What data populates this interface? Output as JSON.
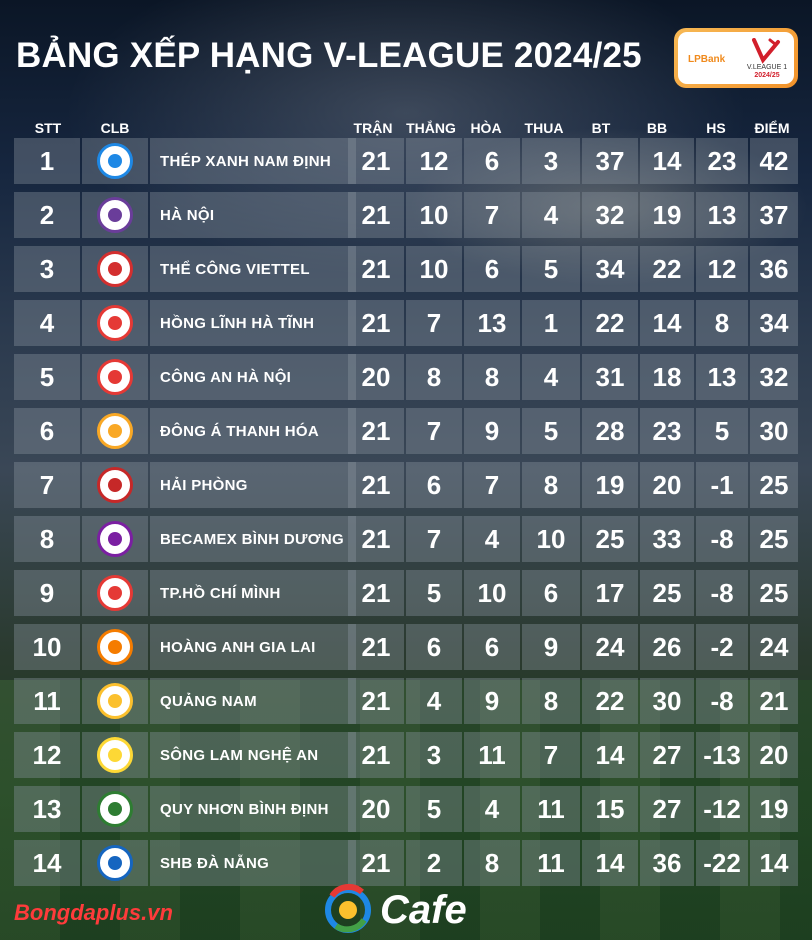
{
  "title": "BẢNG XẾP HẠNG V-LEAGUE 2024/25",
  "badge": {
    "bank": "LPBank",
    "league": "V.LEAGUE 1",
    "season": "2024/25"
  },
  "headers": {
    "stt": "STT",
    "clb": "CLB",
    "played": "TRẬN",
    "won": "THẮNG",
    "drawn": "HÒA",
    "lost": "THUA",
    "gf": "BT",
    "ga": "BB",
    "gd": "HS",
    "pts": "ĐIỂM"
  },
  "rows": [
    {
      "stt": "1",
      "team": "THÉP XANH NAM ĐỊNH",
      "played": "21",
      "won": "12",
      "drawn": "6",
      "lost": "3",
      "gf": "37",
      "ga": "14",
      "gd": "23",
      "pts": "42",
      "logo": "nam-dinh-logo",
      "color": "#1e88e5"
    },
    {
      "stt": "2",
      "team": "HÀ NỘI",
      "played": "21",
      "won": "10",
      "drawn": "7",
      "lost": "4",
      "gf": "32",
      "ga": "19",
      "gd": "13",
      "pts": "37",
      "logo": "ha-noi-logo",
      "color": "#6a3d9a"
    },
    {
      "stt": "3",
      "team": "THỂ CÔNG VIETTEL",
      "played": "21",
      "won": "10",
      "drawn": "6",
      "lost": "5",
      "gf": "34",
      "ga": "22",
      "gd": "12",
      "pts": "36",
      "logo": "viettel-logo",
      "color": "#d32f2f"
    },
    {
      "stt": "4",
      "team": "HỒNG LĨNH HÀ TĨNH",
      "played": "21",
      "won": "7",
      "drawn": "13",
      "lost": "1",
      "gf": "22",
      "ga": "14",
      "gd": "8",
      "pts": "34",
      "logo": "ha-tinh-logo",
      "color": "#e53935"
    },
    {
      "stt": "5",
      "team": "CÔNG AN HÀ NỘI",
      "played": "20",
      "won": "8",
      "drawn": "8",
      "lost": "4",
      "gf": "31",
      "ga": "18",
      "gd": "13",
      "pts": "32",
      "logo": "cong-an-logo",
      "color": "#e53935"
    },
    {
      "stt": "6",
      "team": "ĐÔNG Á THANH HÓA",
      "played": "21",
      "won": "7",
      "drawn": "9",
      "lost": "5",
      "gf": "28",
      "ga": "23",
      "gd": "5",
      "pts": "30",
      "logo": "thanh-hoa-logo",
      "color": "#f9a825"
    },
    {
      "stt": "7",
      "team": "HẢI PHÒNG",
      "played": "21",
      "won": "6",
      "drawn": "7",
      "lost": "8",
      "gf": "19",
      "ga": "20",
      "gd": "-1",
      "pts": "25",
      "logo": "hai-phong-logo",
      "color": "#c62828"
    },
    {
      "stt": "8",
      "team": "BECAMEX BÌNH DƯƠNG",
      "played": "21",
      "won": "7",
      "drawn": "4",
      "lost": "10",
      "gf": "25",
      "ga": "33",
      "gd": "-8",
      "pts": "25",
      "logo": "binh-duong-logo",
      "color": "#7b1fa2"
    },
    {
      "stt": "9",
      "team": "TP.HỒ CHÍ MÌNH",
      "played": "21",
      "won": "5",
      "drawn": "10",
      "lost": "6",
      "gf": "17",
      "ga": "25",
      "gd": "-8",
      "pts": "25",
      "logo": "tphcm-logo",
      "color": "#e53935"
    },
    {
      "stt": "10",
      "team": "HOÀNG ANH GIA LAI",
      "played": "21",
      "won": "6",
      "drawn": "6",
      "lost": "9",
      "gf": "24",
      "ga": "26",
      "gd": "-2",
      "pts": "24",
      "logo": "hagl-logo",
      "color": "#f57c00"
    },
    {
      "stt": "11",
      "team": "QUẢNG NAM",
      "played": "21",
      "won": "4",
      "drawn": "9",
      "lost": "8",
      "gf": "22",
      "ga": "30",
      "gd": "-8",
      "pts": "21",
      "logo": "quang-nam-logo",
      "color": "#fbc02d"
    },
    {
      "stt": "12",
      "team": "SÔNG LAM NGHỆ AN",
      "played": "21",
      "won": "3",
      "drawn": "11",
      "lost": "7",
      "gf": "14",
      "ga": "27",
      "gd": "-13",
      "pts": "20",
      "logo": "slna-logo",
      "color": "#fdd835"
    },
    {
      "stt": "13",
      "team": "QUY NHƠN BÌNH ĐỊNH",
      "played": "20",
      "won": "5",
      "drawn": "4",
      "lost": "11",
      "gf": "15",
      "ga": "27",
      "gd": "-12",
      "pts": "19",
      "logo": "binh-dinh-logo",
      "color": "#2e7d32"
    },
    {
      "stt": "14",
      "team": "SHB ĐÀ NẴNG",
      "played": "21",
      "won": "2",
      "drawn": "8",
      "lost": "11",
      "gf": "14",
      "ga": "36",
      "gd": "-22",
      "pts": "14",
      "logo": "da-nang-logo",
      "color": "#1565c0"
    }
  ],
  "footer": {
    "source": "Bongdaplus.vn",
    "brand": "Cafe"
  }
}
